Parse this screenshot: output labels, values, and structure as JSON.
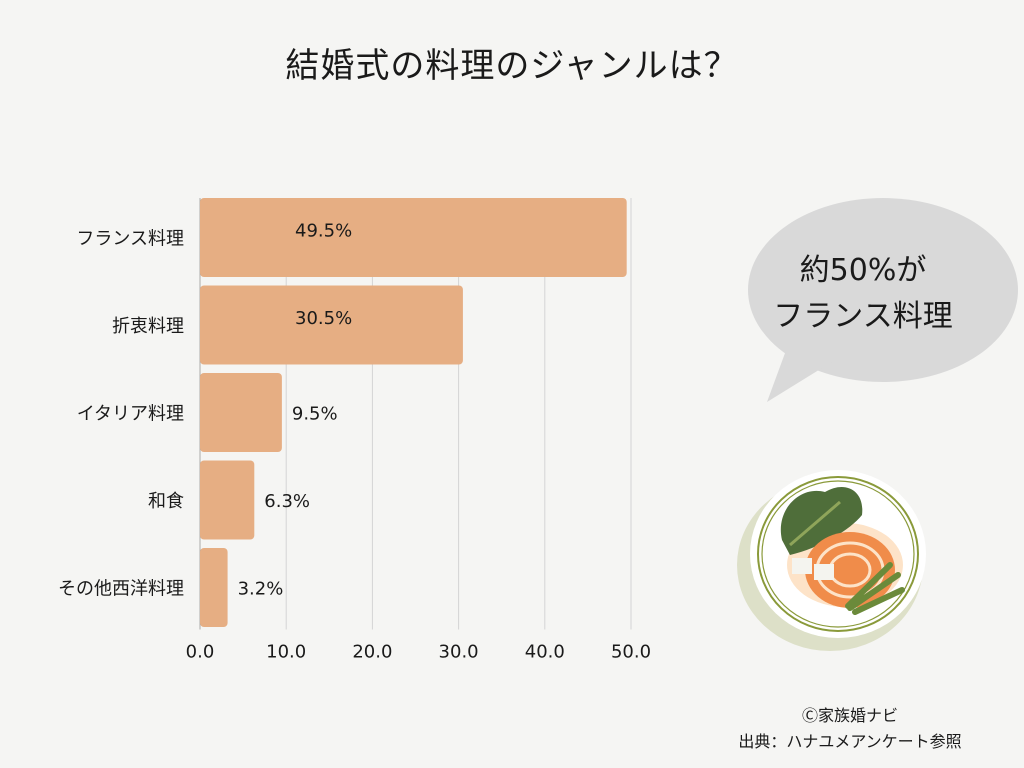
{
  "chart_data": {
    "type": "bar",
    "orientation": "horizontal",
    "title": "結婚式の料理のジャンルは？",
    "categories": [
      "フランス料理",
      "折衷料理",
      "イタリア料理",
      "和食",
      "その他西洋料理"
    ],
    "values": [
      49.5,
      30.5,
      9.5,
      6.3,
      3.2
    ],
    "data_labels": [
      "49.5%",
      "30.5%",
      "9.5%",
      "6.3%",
      "3.2%"
    ],
    "xlim": [
      0,
      50
    ],
    "xticks": [
      "0.0",
      "10.0",
      "20.0",
      "30.0",
      "40.0",
      "50.0"
    ],
    "xlabel": "",
    "ylabel": "",
    "grid": "vertical",
    "bar_color": "#e6ae83"
  },
  "callout": {
    "line1": "約50%が",
    "line2": "フランス料理",
    "color": "#d9d9d9"
  },
  "illustration": "plate-of-food",
  "footer": {
    "credit": "Ⓒ家族婚ナビ",
    "source": "出典：ハナユメアンケート参照"
  }
}
